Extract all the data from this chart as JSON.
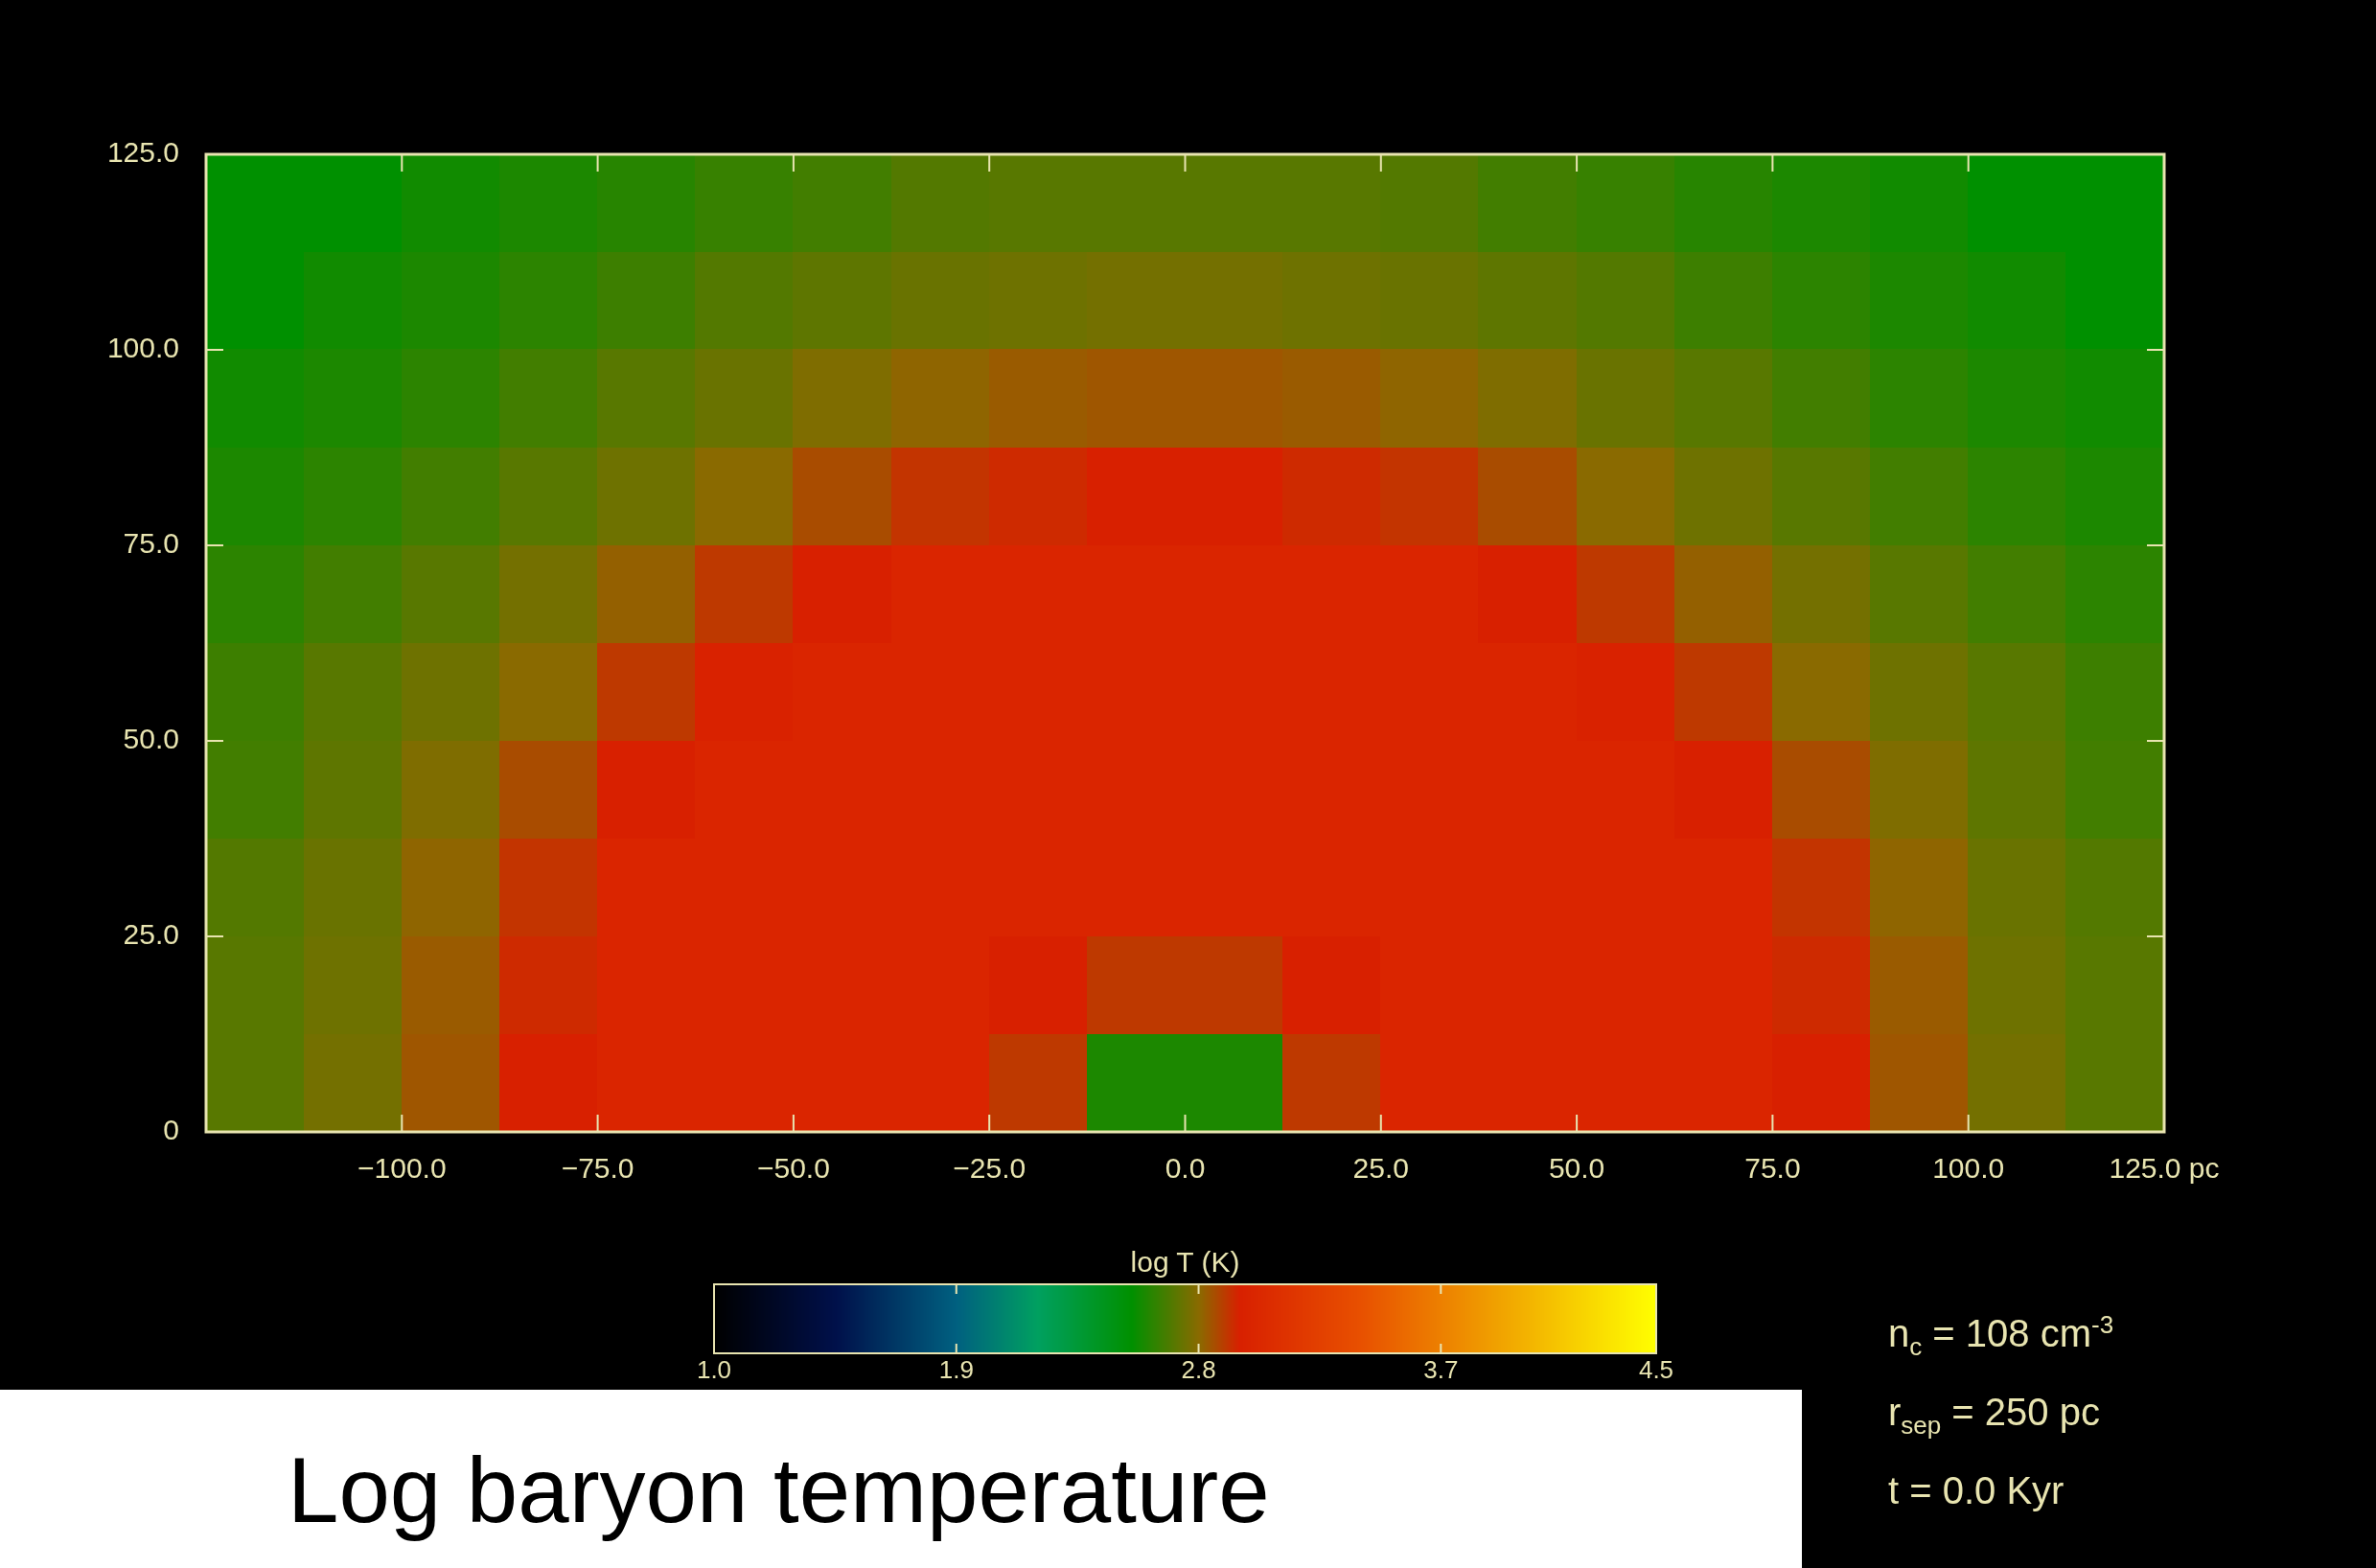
{
  "chart_data": {
    "type": "heatmap",
    "title": "Log baryon temperature",
    "clabel": "log T (K)",
    "xlim": [
      -125,
      125
    ],
    "ylim": [
      0,
      125
    ],
    "xticks": [
      {
        "value": -100,
        "label": "−100.0"
      },
      {
        "value": -75,
        "label": "−75.0"
      },
      {
        "value": -50,
        "label": "−50.0"
      },
      {
        "value": -25,
        "label": "−25.0"
      },
      {
        "value": 0,
        "label": "0.0"
      },
      {
        "value": 25,
        "label": "25.0"
      },
      {
        "value": 50,
        "label": "50.0"
      },
      {
        "value": 75,
        "label": "75.0"
      },
      {
        "value": 100,
        "label": "100.0"
      },
      {
        "value": 125,
        "label": "125.0 pc"
      }
    ],
    "yticks": [
      0,
      {
        "value": 25,
        "label": "25.0"
      },
      {
        "value": 50,
        "label": "50.0"
      },
      {
        "value": 75,
        "label": "75.0"
      },
      {
        "value": 100,
        "label": "100.0"
      },
      {
        "value": 125,
        "label": "125.0"
      }
    ],
    "clim": [
      1.0,
      4.5
    ],
    "cticks": [
      {
        "value": 1.0,
        "label": "1.0"
      },
      {
        "value": 1.9,
        "label": "1.9"
      },
      {
        "value": 2.8,
        "label": "2.8"
      },
      {
        "value": 3.7,
        "label": "3.7"
      },
      {
        "value": 4.5,
        "label": "4.5"
      }
    ],
    "cells": [
      [
        2.55,
        2.55,
        2.58,
        2.6,
        2.62,
        2.65,
        2.67,
        2.7,
        2.71,
        2.71,
        2.71,
        2.71,
        2.7,
        2.67,
        2.65,
        2.62,
        2.6,
        2.58,
        2.55,
        2.55
      ],
      [
        2.55,
        2.58,
        2.6,
        2.63,
        2.66,
        2.7,
        2.72,
        2.74,
        2.75,
        2.76,
        2.76,
        2.75,
        2.74,
        2.72,
        2.7,
        2.66,
        2.63,
        2.6,
        2.58,
        2.55
      ],
      [
        2.58,
        2.6,
        2.63,
        2.67,
        2.71,
        2.74,
        2.78,
        2.81,
        2.83,
        2.84,
        2.84,
        2.83,
        2.81,
        2.78,
        2.74,
        2.71,
        2.67,
        2.63,
        2.6,
        2.58
      ],
      [
        2.6,
        2.63,
        2.67,
        2.71,
        2.75,
        2.8,
        2.86,
        2.91,
        2.93,
        2.95,
        2.95,
        2.93,
        2.91,
        2.86,
        2.8,
        2.75,
        2.71,
        2.67,
        2.63,
        2.6
      ],
      [
        2.63,
        2.67,
        2.71,
        2.76,
        2.82,
        2.9,
        2.95,
        3.0,
        3.0,
        3.0,
        3.0,
        3.0,
        3.0,
        2.95,
        2.9,
        2.82,
        2.76,
        2.71,
        2.67,
        2.63
      ],
      [
        2.66,
        2.71,
        2.75,
        2.8,
        2.9,
        2.97,
        3.0,
        3.0,
        3.0,
        3.0,
        3.0,
        3.0,
        3.0,
        3.0,
        2.97,
        2.9,
        2.8,
        2.75,
        2.71,
        2.66
      ],
      [
        2.67,
        2.72,
        2.78,
        2.86,
        2.95,
        3.0,
        3.0,
        3.0,
        3.0,
        3.0,
        3.0,
        3.0,
        3.0,
        3.0,
        3.0,
        2.95,
        2.86,
        2.78,
        2.72,
        2.67
      ],
      [
        2.7,
        2.74,
        2.81,
        2.91,
        3.0,
        3.0,
        3.0,
        3.0,
        3.0,
        3.0,
        3.0,
        3.0,
        3.0,
        3.0,
        3.0,
        3.0,
        2.91,
        2.81,
        2.74,
        2.7
      ],
      [
        2.71,
        2.75,
        2.83,
        2.93,
        3.0,
        3.0,
        3.0,
        3.0,
        2.95,
        2.9,
        2.9,
        2.95,
        3.0,
        3.0,
        3.0,
        3.0,
        2.93,
        2.83,
        2.75,
        2.71
      ],
      [
        2.71,
        2.76,
        2.84,
        2.95,
        3.0,
        3.0,
        3.0,
        3.0,
        2.9,
        2.6,
        2.6,
        2.9,
        3.0,
        3.0,
        3.0,
        3.0,
        2.95,
        2.84,
        2.76,
        2.71
      ]
    ],
    "annotations": [
      "n$_{c}$ = 108 cm$^{-3}$",
      "r$_{sep}$ = 250 pc",
      "t = 0.0 Kyr"
    ]
  }
}
